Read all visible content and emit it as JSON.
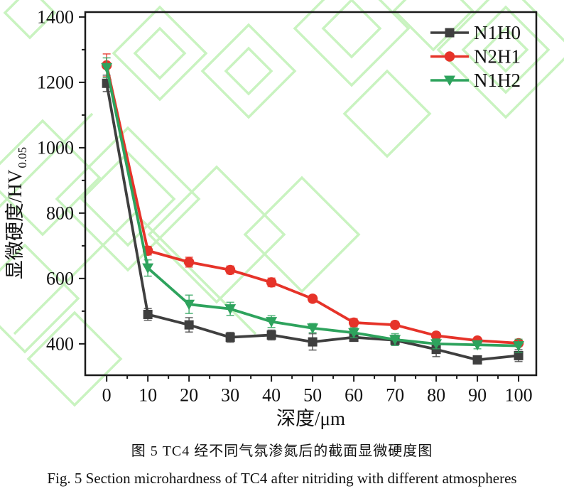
{
  "figure": {
    "caption_zh": "图 5 TC4 经不同气氛渗氮后的截面显微硬度图",
    "caption_en": "Fig. 5 Section microhardness of TC4 after nitriding with different atmospheres"
  },
  "chart_data": {
    "type": "line",
    "title": "",
    "xlabel": "深度/μm",
    "ylabel": "显微硬度/HV",
    "ylabel_sub": "0.05",
    "x": [
      0,
      10,
      20,
      30,
      40,
      50,
      60,
      70,
      80,
      90,
      100
    ],
    "xticks": [
      0,
      10,
      20,
      30,
      40,
      50,
      60,
      70,
      80,
      90,
      100
    ],
    "yticks": [
      400,
      600,
      800,
      1000,
      1200,
      1400
    ],
    "x_minor_step": 5,
    "y_minor_step": 100,
    "xlim": [
      -5.2,
      104.3
    ],
    "ylim": [
      304,
      1415
    ],
    "grid": false,
    "legend_position": "top-right-inside",
    "axis_color": "#1a1a1a",
    "watermark_color": "#c9f3c0",
    "series": [
      {
        "name": "N1H0",
        "marker": "square",
        "color": "#3f3f3f",
        "values": [
          1197,
          490,
          458,
          420,
          427,
          406,
          420,
          411,
          383,
          351,
          364
        ],
        "errors": [
          25,
          18,
          22,
          15,
          15,
          25,
          12,
          15,
          22,
          12,
          18
        ]
      },
      {
        "name": "N2H1",
        "marker": "circle",
        "color": "#e63329",
        "values": [
          1252,
          685,
          650,
          626,
          588,
          538,
          465,
          458,
          425,
          410,
          402
        ],
        "errors": [
          35,
          13,
          15,
          12,
          13,
          10,
          12,
          10,
          10,
          8,
          8
        ]
      },
      {
        "name": "N1H2",
        "marker": "triangle-down",
        "color": "#2ea35d",
        "values": [
          1245,
          632,
          521,
          507,
          468,
          448,
          434,
          413,
          400,
          397,
          394
        ],
        "errors": [
          30,
          25,
          28,
          20,
          18,
          14,
          15,
          18,
          15,
          12,
          20
        ]
      }
    ]
  }
}
